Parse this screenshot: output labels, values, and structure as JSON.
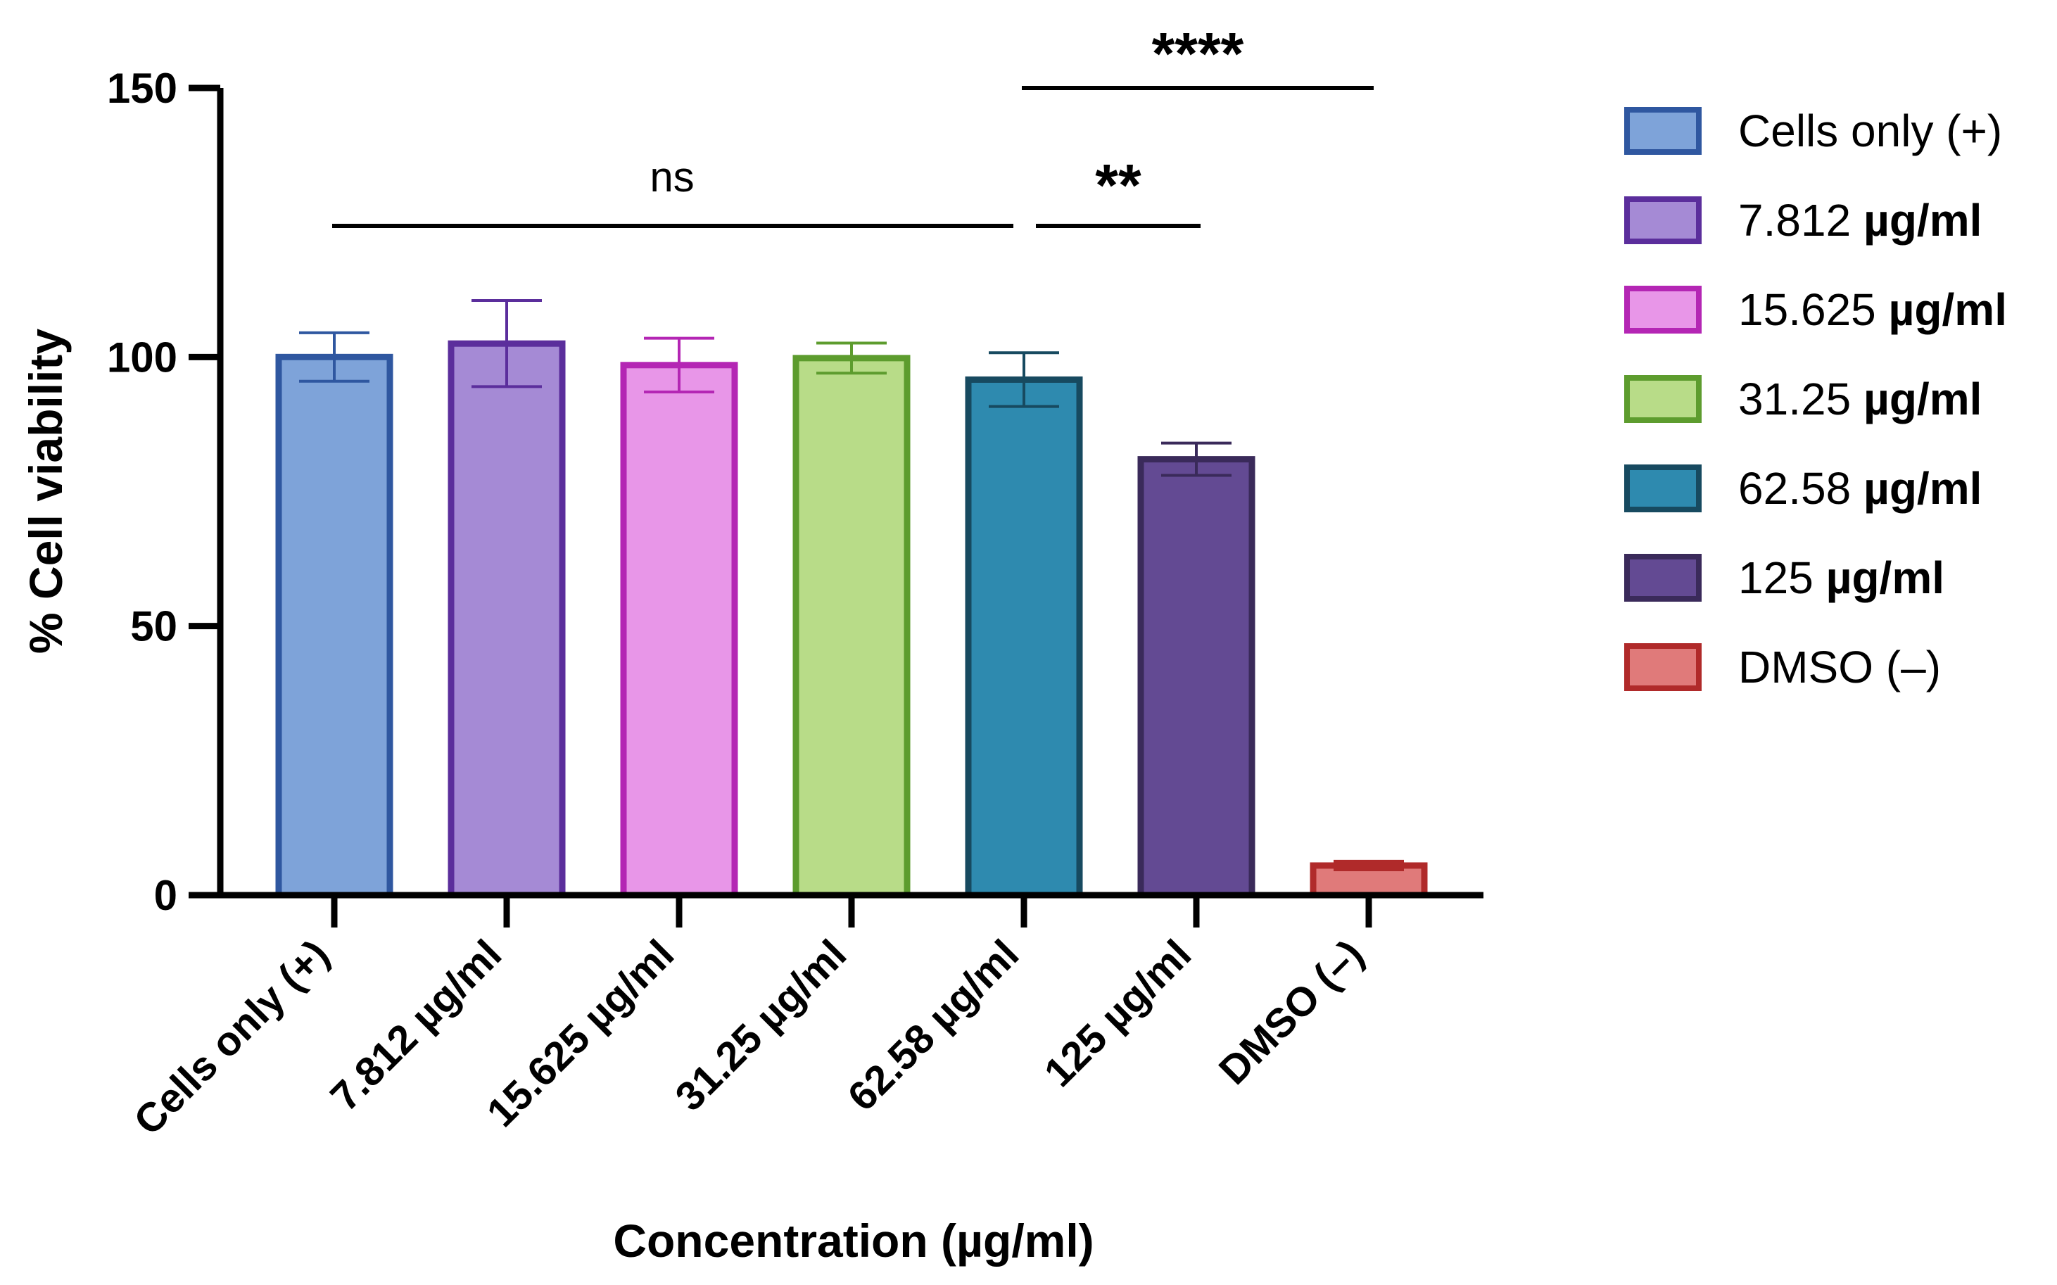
{
  "chart_data": {
    "type": "bar",
    "title": "",
    "xlabel": "Concentration (µg/ml)",
    "ylabel": "% Cell viability",
    "ylim": [
      0,
      150
    ],
    "yticks": [
      0,
      50,
      100,
      150
    ],
    "ytick_labels": [
      "0",
      "50",
      "100",
      "150"
    ],
    "categories": [
      "Cells only (+)",
      "7.812 µg/ml",
      "15.625 µg/ml",
      "31.25 µg/ml",
      "62.58 µg/ml",
      "125  µg/ml",
      "DMSO (–)"
    ],
    "values": [
      100,
      102.5,
      98.5,
      99.8,
      95.8,
      81,
      5.5
    ],
    "errors": [
      4.5,
      8,
      5,
      2.8,
      5,
      3,
      0.8
    ],
    "colors": {
      "fill": [
        "#7ea3d9",
        "#a58ad5",
        "#e896e8",
        "#b8dc88",
        "#2e8aaf",
        "#634a93",
        "#e07a7a"
      ],
      "stroke": [
        "#2f57a0",
        "#5b2e9c",
        "#b426b4",
        "#5d9c2e",
        "#174a60",
        "#3a2a5a",
        "#b02a2a"
      ]
    },
    "significance": [
      {
        "label": "****",
        "from": 4,
        "to": 6,
        "y": 150
      },
      {
        "label": "ns",
        "from": 0,
        "to": 4,
        "y": 125
      },
      {
        "label": "**",
        "from": 4,
        "to": 5,
        "y": 125
      }
    ],
    "legend": {
      "position": "right",
      "entries": [
        {
          "text": "Cells only (+)",
          "unit": ""
        },
        {
          "text": "7.812 ",
          "unit": "µg/ml"
        },
        {
          "text": "15.625 ",
          "unit": "µg/ml"
        },
        {
          "text": "31.25 ",
          "unit": "µg/ml"
        },
        {
          "text": "62.58 ",
          "unit": "µg/ml"
        },
        {
          "text": "125  ",
          "unit": "µg/ml"
        },
        {
          "text": "DMSO (–)",
          "unit": ""
        }
      ]
    }
  }
}
